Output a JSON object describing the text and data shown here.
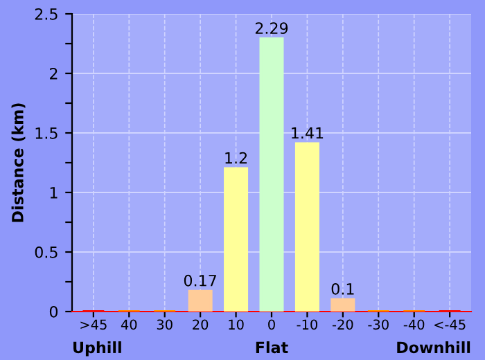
{
  "chart_data": {
    "type": "bar",
    "ylabel": "Distance (km)",
    "categories": [
      ">45",
      "40",
      "30",
      "20",
      "10",
      "0",
      "-10",
      "-20",
      "-30",
      "-40",
      "<-45"
    ],
    "values": [
      0,
      0,
      0,
      0.17,
      1.2,
      2.29,
      1.41,
      0.1,
      0,
      0,
      0
    ],
    "colors": [
      "#ee1111",
      "#ff8800",
      "#ff9900",
      "#ffcc99",
      "#ffff99",
      "#ccffcc",
      "#ffff99",
      "#ffcc99",
      "#ff9900",
      "#ff8800",
      "#ee1111"
    ],
    "value_labels": [
      null,
      null,
      null,
      "0.17",
      "1.2",
      "2.29",
      "1.41",
      "0.1",
      null,
      null,
      null
    ],
    "ylim": [
      0,
      2.5
    ],
    "yticks": [
      0,
      {
        "value": 0.25,
        "label": null
      },
      0.5,
      {
        "value": 0.75,
        "label": null
      },
      1,
      {
        "value": 1.25,
        "label": null
      },
      1.5,
      {
        "value": 1.75,
        "label": null
      },
      2,
      {
        "value": 2.25,
        "label": null
      },
      2.5
    ],
    "grid": true,
    "annotations": [
      "Uphill",
      "Flat",
      "Downhill"
    ]
  }
}
